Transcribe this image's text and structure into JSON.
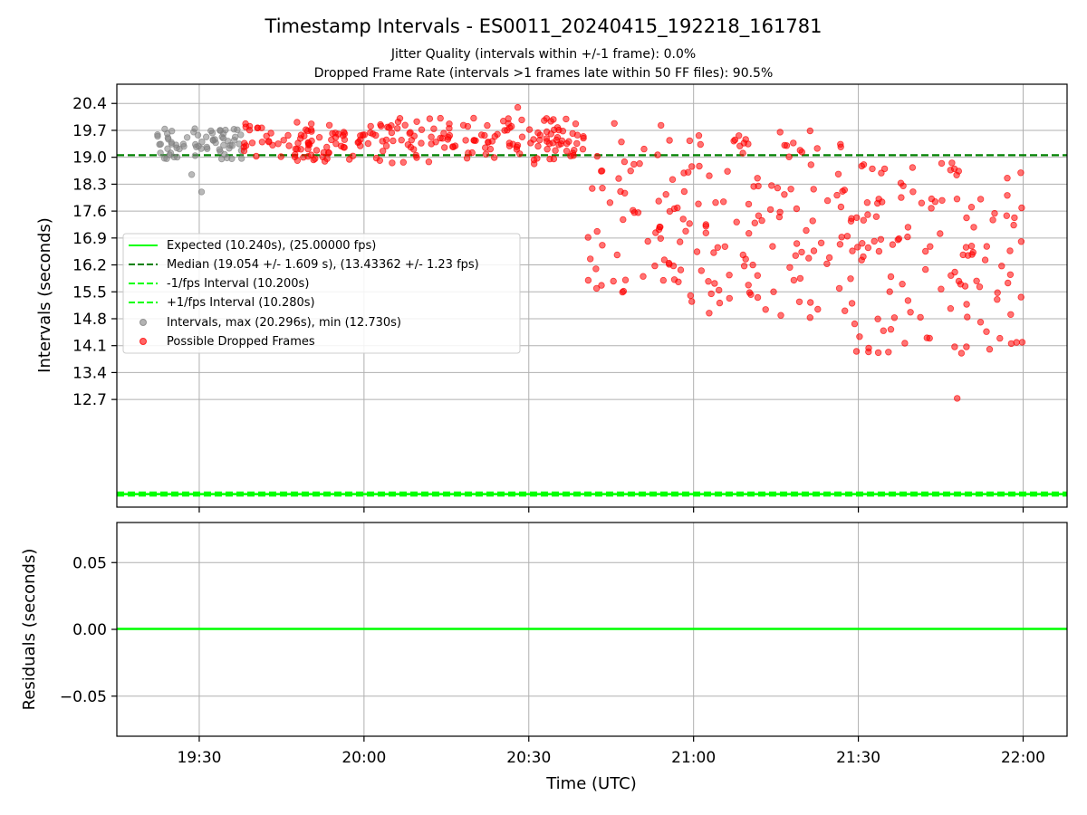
{
  "title": "Timestamp Intervals - ES0011_20240415_192218_161781",
  "subtitle1": "Jitter Quality (intervals within +/-1 frame): 0.0%",
  "subtitle2": "Dropped Frame Rate (intervals >1 frames late within 50 FF files): 90.5%",
  "chart_data": [
    {
      "type": "scatter",
      "xlabel": "",
      "ylabel": "Intervals (seconds)",
      "x_range": [
        "19:15",
        "22:08"
      ],
      "y_range": [
        9.9,
        20.9
      ],
      "y_ticks": [
        "12.7",
        "13.4",
        "14.1",
        "14.8",
        "15.5",
        "16.2",
        "16.9",
        "17.6",
        "18.3",
        "19.0",
        "19.7",
        "20.4"
      ],
      "grid": true,
      "legend_position": "center-left",
      "lines": [
        {
          "name": "Expected (10.240s), (25.00000 fps)",
          "y": 10.24,
          "color": "#00ff00",
          "style": "solid"
        },
        {
          "name": "Median (19.054 +/- 1.609 s), (13.43362 +/- 1.23 fps)",
          "y": 19.054,
          "color": "#008000",
          "style": "dashed"
        },
        {
          "name": "-1/fps Interval (10.200s)",
          "y": 10.2,
          "color": "#00ff00",
          "style": "dashed"
        },
        {
          "name": "+1/fps Interval (10.280s)",
          "y": 10.28,
          "color": "#00ff00",
          "style": "dashed"
        }
      ],
      "series": [
        {
          "name": "Intervals, max (20.296s), min (12.730s)",
          "color": "#808080",
          "time_range": [
            "19:22",
            "19:38"
          ],
          "y_range": [
            18.1,
            19.9
          ]
        },
        {
          "name": "Possible Dropped Frames",
          "color": "#ff0000",
          "time_range": [
            "19:38",
            "22:00"
          ],
          "y_range": [
            12.73,
            20.296
          ]
        }
      ]
    },
    {
      "type": "line",
      "xlabel": "Time (UTC)",
      "ylabel": "Residuals (seconds)",
      "x_ticks": [
        "19:30",
        "20:00",
        "20:30",
        "21:00",
        "21:30",
        "22:00"
      ],
      "y_ticks": [
        "−0.05",
        "0.00",
        "0.05"
      ],
      "y_range": [
        -0.08,
        0.08
      ],
      "grid": true,
      "series": [
        {
          "color": "#00ff00",
          "y": 0
        }
      ]
    }
  ]
}
